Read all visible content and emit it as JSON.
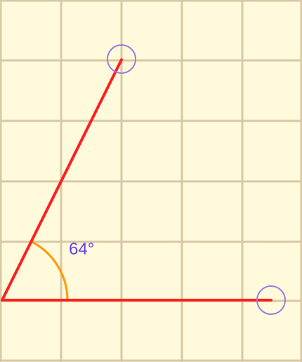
{
  "canvas": {
    "background": "#FFFADC",
    "grid_color": "#D8C8A5"
  },
  "angle": {
    "degrees": 64,
    "label": "64°",
    "ray_color": "#FF1F1F",
    "arc_color": "#FF9A00",
    "label_color": "#6A3FE6",
    "handle_color": "#9B7BE0"
  }
}
